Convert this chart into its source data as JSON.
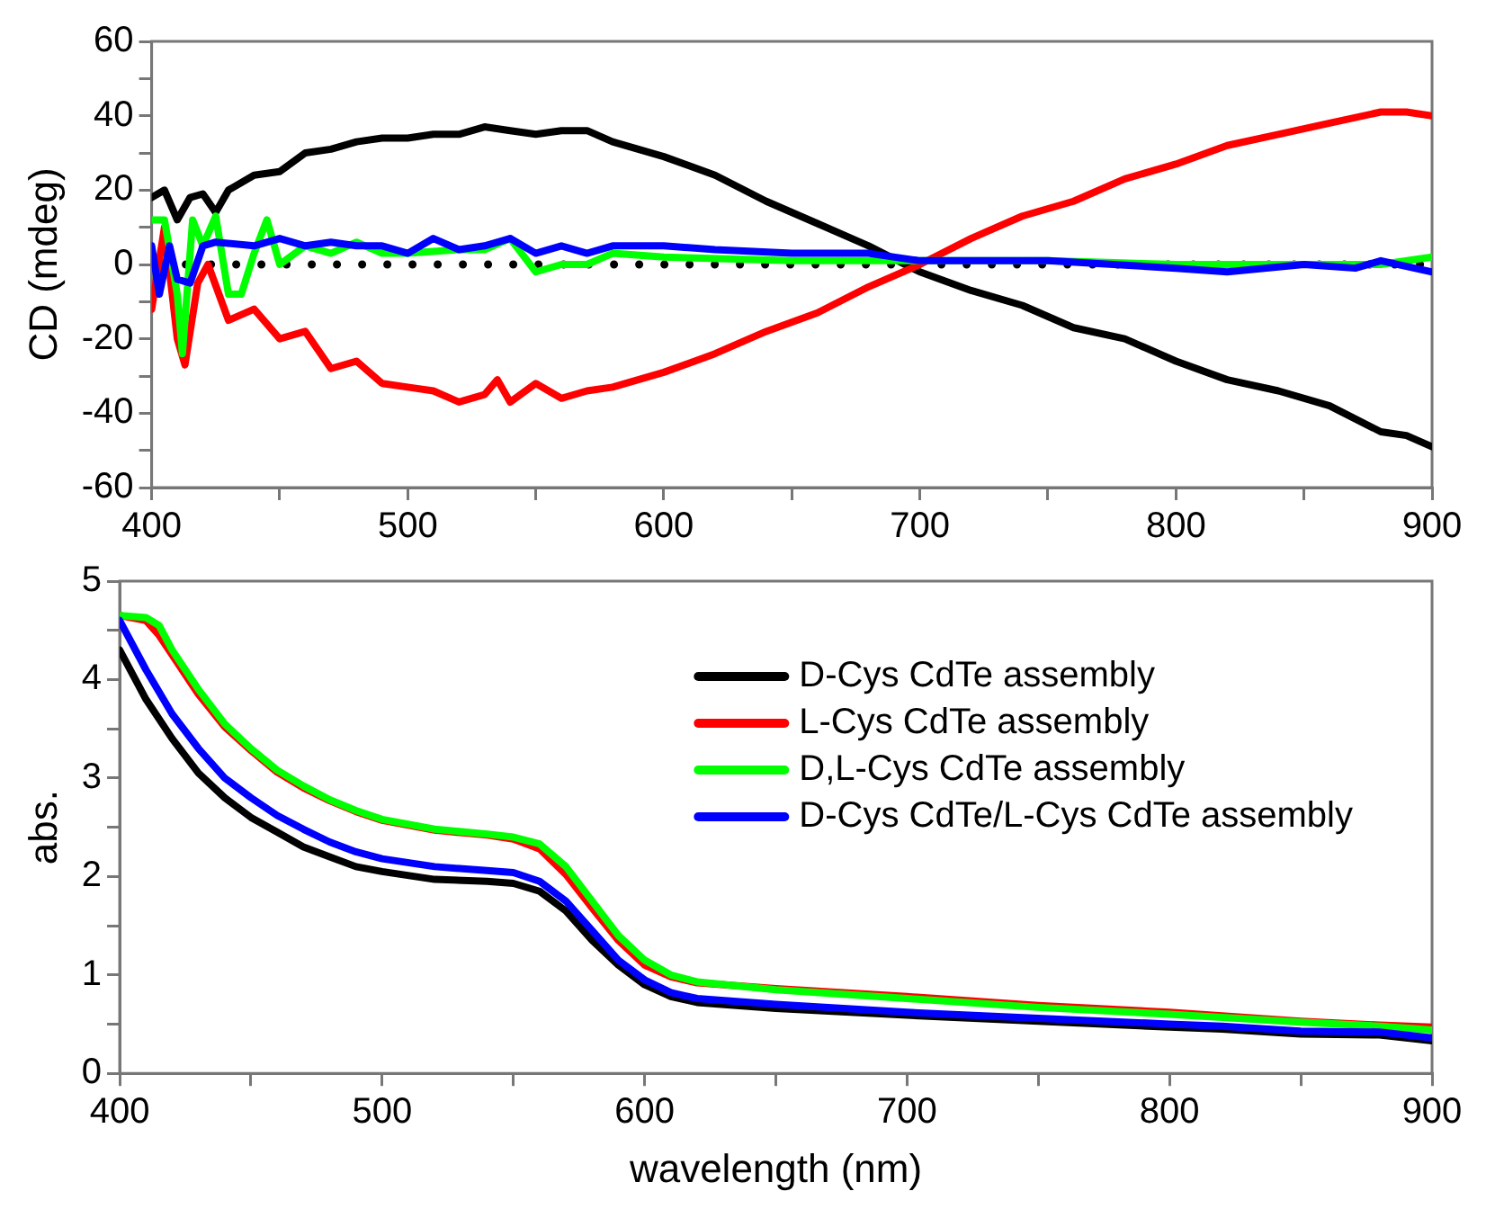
{
  "chart_data": [
    {
      "type": "line",
      "ylabel": "CD (mdeg)",
      "xlim": [
        400,
        900
      ],
      "xticks": [
        400,
        {
          "value": 450,
          "label": null
        },
        500,
        {
          "value": 550,
          "label": null
        },
        600,
        {
          "value": 650,
          "label": null
        },
        700,
        {
          "value": 750,
          "label": null
        },
        800,
        {
          "value": 850,
          "label": null
        },
        900
      ],
      "ylim": [
        -60,
        60
      ],
      "yticks": [
        -60,
        {
          "value": -50,
          "label": null
        },
        -40,
        {
          "value": -30,
          "label": null
        },
        -20,
        {
          "value": -10,
          "label": null
        },
        0,
        {
          "value": 10,
          "label": null
        },
        20,
        {
          "value": 30,
          "label": null
        },
        40,
        {
          "value": 50,
          "label": null
        },
        60
      ],
      "grid": false,
      "legend": false,
      "marker": "none",
      "line_style": "solid",
      "ref_lines": [
        {
          "axis": "y",
          "value": 0,
          "color": "#000000",
          "line_style": "dotted"
        }
      ],
      "series": [
        {
          "color": "#000000",
          "x": [
            400,
            405,
            410,
            415,
            420,
            425,
            430,
            440,
            450,
            460,
            470,
            480,
            490,
            500,
            510,
            520,
            530,
            540,
            550,
            560,
            570,
            580,
            590,
            600,
            620,
            640,
            660,
            680,
            700,
            720,
            740,
            760,
            780,
            800,
            820,
            840,
            860,
            880,
            890,
            900
          ],
          "values": [
            18,
            20,
            12,
            18,
            19,
            14,
            20,
            24,
            25,
            30,
            31,
            33,
            34,
            34,
            35,
            35,
            37,
            36,
            35,
            36,
            36,
            33,
            31,
            29,
            24,
            17,
            11,
            5,
            -2,
            -7,
            -11,
            -17,
            -20,
            -26,
            -31,
            -34,
            -38,
            -45,
            -46,
            -49
          ]
        },
        {
          "color": "#ff0000",
          "x": [
            400,
            405,
            410,
            413,
            418,
            422,
            430,
            440,
            450,
            460,
            470,
            480,
            490,
            500,
            510,
            520,
            530,
            535,
            540,
            550,
            560,
            570,
            580,
            600,
            620,
            640,
            660,
            680,
            700,
            720,
            740,
            760,
            780,
            800,
            820,
            840,
            860,
            880,
            890,
            900
          ],
          "values": [
            -12,
            10,
            -20,
            -27,
            -5,
            0,
            -15,
            -12,
            -20,
            -18,
            -28,
            -26,
            -32,
            -33,
            -34,
            -37,
            -35,
            -31,
            -37,
            -32,
            -36,
            -34,
            -33,
            -29,
            -24,
            -18,
            -13,
            -6,
            0,
            7,
            13,
            17,
            23,
            27,
            32,
            35,
            38,
            41,
            41,
            40
          ]
        },
        {
          "color": "#00ff00",
          "x": [
            400,
            405,
            410,
            412,
            416,
            420,
            425,
            430,
            435,
            440,
            445,
            450,
            460,
            470,
            480,
            490,
            500,
            520,
            530,
            540,
            550,
            560,
            570,
            580,
            600,
            650,
            700,
            750,
            800,
            850,
            880,
            900
          ],
          "values": [
            12,
            12,
            -8,
            -24,
            12,
            5,
            13,
            -8,
            -8,
            3,
            12,
            0,
            5,
            3,
            6,
            3,
            3,
            4,
            4,
            7,
            -2,
            0,
            0,
            3,
            2,
            1,
            1,
            1,
            0,
            0,
            0,
            2
          ]
        },
        {
          "color": "#0000ff",
          "x": [
            400,
            403,
            407,
            410,
            415,
            420,
            425,
            440,
            450,
            460,
            470,
            480,
            490,
            500,
            510,
            520,
            530,
            540,
            550,
            560,
            570,
            580,
            600,
            620,
            650,
            680,
            700,
            720,
            750,
            800,
            820,
            850,
            870,
            880,
            900
          ],
          "values": [
            5,
            -8,
            5,
            -4,
            -5,
            5,
            6,
            5,
            7,
            5,
            6,
            5,
            5,
            3,
            7,
            4,
            5,
            7,
            3,
            5,
            3,
            5,
            5,
            4,
            3,
            3,
            1,
            1,
            1,
            -1,
            -2,
            0,
            -1,
            1,
            -2
          ]
        }
      ]
    },
    {
      "type": "line",
      "xlabel": "wavelength (nm)",
      "ylabel": "abs.",
      "xlim": [
        400,
        900
      ],
      "xticks": [
        400,
        {
          "value": 450,
          "label": null
        },
        500,
        {
          "value": 550,
          "label": null
        },
        600,
        {
          "value": 650,
          "label": null
        },
        700,
        {
          "value": 750,
          "label": null
        },
        800,
        {
          "value": 850,
          "label": null
        },
        900
      ],
      "ylim": [
        0,
        5
      ],
      "yticks": [
        0,
        {
          "value": 0.5,
          "label": null
        },
        1,
        {
          "value": 1.5,
          "label": null
        },
        2,
        {
          "value": 2.5,
          "label": null
        },
        3,
        {
          "value": 3.5,
          "label": null
        },
        4,
        {
          "value": 4.5,
          "label": null
        },
        5
      ],
      "grid": false,
      "legend": "top right",
      "marker": "none",
      "line_style": "solid",
      "series": [
        {
          "name": "D-Cys CdTe assembly",
          "color": "#000000",
          "x": [
            400,
            410,
            420,
            430,
            440,
            450,
            460,
            470,
            480,
            490,
            500,
            520,
            540,
            550,
            560,
            570,
            580,
            590,
            600,
            610,
            620,
            650,
            700,
            750,
            800,
            820,
            850,
            880,
            900
          ],
          "values": [
            4.3,
            3.8,
            3.4,
            3.05,
            2.8,
            2.6,
            2.45,
            2.3,
            2.2,
            2.1,
            2.05,
            1.97,
            1.95,
            1.93,
            1.85,
            1.65,
            1.35,
            1.1,
            0.9,
            0.78,
            0.72,
            0.66,
            0.59,
            0.53,
            0.47,
            0.45,
            0.4,
            0.39,
            0.33
          ]
        },
        {
          "name": "L-Cys CdTe assembly",
          "color": "#ff0000",
          "x": [
            400,
            410,
            415,
            420,
            430,
            440,
            450,
            460,
            470,
            480,
            490,
            500,
            520,
            540,
            550,
            560,
            570,
            580,
            590,
            600,
            610,
            620,
            650,
            700,
            750,
            800,
            850,
            880,
            900
          ],
          "values": [
            4.65,
            4.6,
            4.45,
            4.25,
            3.85,
            3.52,
            3.28,
            3.06,
            2.9,
            2.77,
            2.66,
            2.57,
            2.47,
            2.42,
            2.38,
            2.28,
            2.02,
            1.68,
            1.35,
            1.1,
            0.98,
            0.92,
            0.86,
            0.78,
            0.69,
            0.62,
            0.53,
            0.49,
            0.47
          ]
        },
        {
          "name": "D,L-Cys CdTe assembly",
          "color": "#00ff00",
          "x": [
            400,
            410,
            415,
            420,
            430,
            440,
            450,
            460,
            470,
            480,
            490,
            500,
            520,
            540,
            550,
            560,
            570,
            580,
            590,
            600,
            610,
            620,
            650,
            700,
            750,
            800,
            850,
            880,
            900
          ],
          "values": [
            4.65,
            4.63,
            4.55,
            4.3,
            3.9,
            3.55,
            3.3,
            3.08,
            2.92,
            2.78,
            2.67,
            2.58,
            2.48,
            2.43,
            2.4,
            2.33,
            2.1,
            1.75,
            1.4,
            1.15,
            1.0,
            0.93,
            0.85,
            0.76,
            0.67,
            0.6,
            0.52,
            0.48,
            0.44
          ]
        },
        {
          "name": "D-Cys CdTe/L-Cys CdTe assembly",
          "color": "#0000ff",
          "x": [
            400,
            410,
            420,
            430,
            440,
            450,
            460,
            470,
            480,
            490,
            500,
            520,
            540,
            550,
            560,
            570,
            580,
            590,
            600,
            610,
            620,
            650,
            700,
            750,
            800,
            820,
            850,
            880,
            900
          ],
          "values": [
            4.6,
            4.1,
            3.65,
            3.3,
            3.0,
            2.8,
            2.62,
            2.48,
            2.35,
            2.25,
            2.18,
            2.1,
            2.06,
            2.04,
            1.95,
            1.75,
            1.45,
            1.15,
            0.95,
            0.82,
            0.76,
            0.7,
            0.62,
            0.56,
            0.5,
            0.48,
            0.43,
            0.42,
            0.36
          ]
        }
      ]
    }
  ]
}
